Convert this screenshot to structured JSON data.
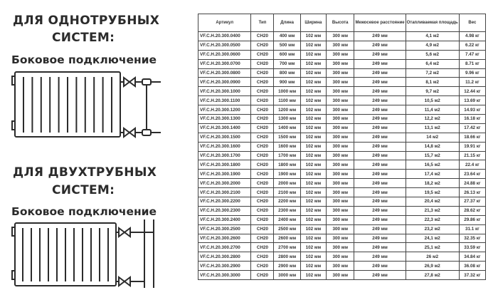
{
  "one_pipe": {
    "title_line1": "ДЛЯ ОДНОТРУБНЫХ",
    "title_line2": "СИСТЕМ:",
    "subtitle": "Боковое подключение"
  },
  "two_pipe": {
    "title_line1": "ДЛЯ ДВУХТРУБНЫХ",
    "title_line2": "СИСТЕМ:",
    "subtitle": "Боковое подключение"
  },
  "table": {
    "headers": [
      "Артикул",
      "Тип",
      "Длина",
      "Ширина",
      "Высота",
      "Межосевое расстояние",
      "Отапливаемая площадь",
      "Вес"
    ],
    "rows": [
      [
        "VF.C.H.20.300.0400",
        "CH20",
        "400 мм",
        "102 мм",
        "300 мм",
        "249 мм",
        "4,1 м2",
        "4.98 кг"
      ],
      [
        "VF.C.H.20.300.0500",
        "CH20",
        "500 мм",
        "102 мм",
        "300 мм",
        "249 мм",
        "4,9 м2",
        "6.22 кг"
      ],
      [
        "VF.C.H.20.300.0600",
        "CH20",
        "600 мм",
        "102 мм",
        "300 мм",
        "249 мм",
        "5,6 м2",
        "7.47 кг"
      ],
      [
        "VF.C.H.20.300.0700",
        "CH20",
        "700 мм",
        "102 мм",
        "300 мм",
        "249 мм",
        "6,4 м2",
        "8.71 кг"
      ],
      [
        "VF.C.H.20.300.0800",
        "CH20",
        "800 мм",
        "102 мм",
        "300 мм",
        "249 мм",
        "7,2 м2",
        "9.96 кг"
      ],
      [
        "VF.C.H.20.300.0900",
        "CH20",
        "900 мм",
        "102 мм",
        "300 мм",
        "249 мм",
        "8,1 м2",
        "11.2 кг"
      ],
      [
        "VF.C.H.20.300.1000",
        "CH20",
        "1000 мм",
        "102 мм",
        "300 мм",
        "249 мм",
        "9,7 м2",
        "12.44 кг"
      ],
      [
        "VF.C.H.20.300.1100",
        "CH20",
        "1100 мм",
        "102 мм",
        "300 мм",
        "249 мм",
        "10,5 м2",
        "13.69 кг"
      ],
      [
        "VF.C.H.20.300.1200",
        "CH20",
        "1200 мм",
        "102 мм",
        "300 мм",
        "249 мм",
        "11,4 м2",
        "14.93 кг"
      ],
      [
        "VF.C.H.20.300.1300",
        "CH20",
        "1300 мм",
        "102 мм",
        "300 мм",
        "249 мм",
        "12,2 м2",
        "16.18 кг"
      ],
      [
        "VF.C.H.20.300.1400",
        "CH20",
        "1400 мм",
        "102 мм",
        "300 мм",
        "249 мм",
        "13,1 м2",
        "17.42 кг"
      ],
      [
        "VF.C.H.20.300.1500",
        "CH20",
        "1500 мм",
        "102 мм",
        "300 мм",
        "249 мм",
        "14 м2",
        "18.66 кг"
      ],
      [
        "VF.C.H.20.300.1600",
        "CH20",
        "1600 мм",
        "102 мм",
        "300 мм",
        "249 мм",
        "14,8 м2",
        "19.91 кг"
      ],
      [
        "VF.C.H.20.300.1700",
        "CH20",
        "1700 мм",
        "102 мм",
        "300 мм",
        "249 мм",
        "15,7 м2",
        "21.15 кг"
      ],
      [
        "VF.C.H.20.300.1800",
        "CH20",
        "1800 мм",
        "102 мм",
        "300 мм",
        "249 мм",
        "16,5 м2",
        "22.4 кг"
      ],
      [
        "VF.C.H.20.300.1900",
        "CH20",
        "1900 мм",
        "102 мм",
        "300 мм",
        "249 мм",
        "17,4 м2",
        "23.64 кг"
      ],
      [
        "VF.C.H.20.300.2000",
        "CH20",
        "2000 мм",
        "102 мм",
        "300 мм",
        "249 мм",
        "18,2 м2",
        "24.88 кг"
      ],
      [
        "VF.C.H.20.300.2100",
        "CH20",
        "2100 мм",
        "102 мм",
        "300 мм",
        "249 мм",
        "19,5 м2",
        "26.13 кг"
      ],
      [
        "VF.C.H.20.300.2200",
        "CH20",
        "2200 мм",
        "102 мм",
        "300 мм",
        "249 мм",
        "20,4 м2",
        "27.37 кг"
      ],
      [
        "VF.C.H.20.300.2300",
        "CH20",
        "2300 мм",
        "102 мм",
        "300 мм",
        "249 мм",
        "21,3 м2",
        "28.62 кг"
      ],
      [
        "VF.C.H.20.300.2400",
        "CH20",
        "2400 мм",
        "102 мм",
        "300 мм",
        "249 мм",
        "22,3 м2",
        "29.86 кг"
      ],
      [
        "VF.C.H.20.300.2500",
        "CH20",
        "2500 мм",
        "102 мм",
        "300 мм",
        "249 мм",
        "23,2 м2",
        "31.1 кг"
      ],
      [
        "VF.C.H.20.300.2600",
        "CH20",
        "2600 мм",
        "102 мм",
        "300 мм",
        "249 мм",
        "24,1 м2",
        "32.35 кг"
      ],
      [
        "VF.C.H.20.300.2700",
        "CH20",
        "2700 мм",
        "102 мм",
        "300 мм",
        "249 мм",
        "25,1 м2",
        "33.59 кг"
      ],
      [
        "VF.C.H.20.300.2800",
        "CH20",
        "2800 мм",
        "102 мм",
        "300 мм",
        "249 мм",
        "26 м2",
        "34.84 кг"
      ],
      [
        "VF.C.H.20.300.2900",
        "CH20",
        "2900 мм",
        "102 мм",
        "300 мм",
        "249 мм",
        "26,9 м2",
        "36.08 кг"
      ],
      [
        "VF.C.H.20.300.3000",
        "CH20",
        "3000 мм",
        "102 мм",
        "300 мм",
        "249 мм",
        "27,8 м2",
        "37.32 кг"
      ]
    ]
  }
}
